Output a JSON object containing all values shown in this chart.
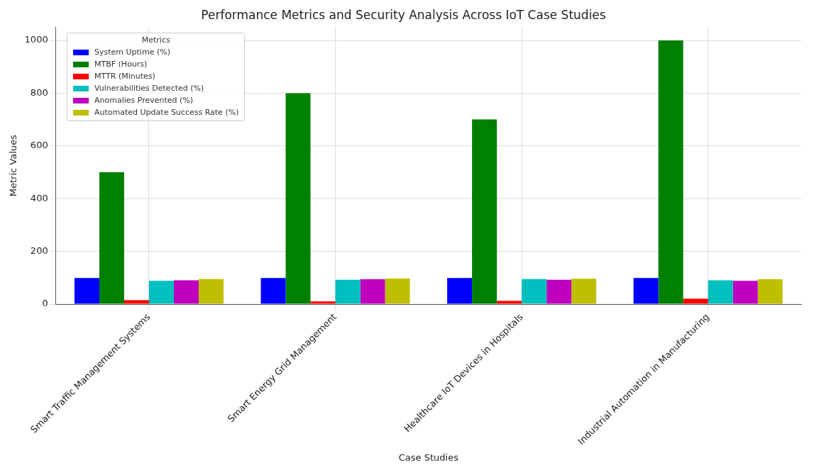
{
  "chart_data": {
    "type": "bar",
    "title": "Performance Metrics and Security Analysis Across IoT Case Studies",
    "xlabel": "Case Studies",
    "ylabel": "Metric Values",
    "legend_title": "Metrics",
    "categories": [
      "Smart Traffic Management Systems",
      "Smart Energy Grid Management",
      "Healthcare IoT Devices in Hospitals",
      "Industrial Automation in Manufacturing"
    ],
    "series": [
      {
        "name": "System Uptime (%)",
        "color": "#0000ff",
        "values": [
          99,
          99,
          99,
          99
        ]
      },
      {
        "name": "MTBF (Hours)",
        "color": "#008000",
        "values": [
          500,
          800,
          700,
          1000
        ]
      },
      {
        "name": "MTTR (Minutes)",
        "color": "#ff0000",
        "values": [
          15,
          10,
          12,
          20
        ]
      },
      {
        "name": "Vulnerabilities Detected (%)",
        "color": "#00bfbf",
        "values": [
          88,
          92,
          95,
          90
        ]
      },
      {
        "name": "Anomalies Prevented (%)",
        "color": "#bf00bf",
        "values": [
          90,
          94,
          92,
          88
        ]
      },
      {
        "name": "Automated Update Success Rate (%)",
        "color": "#bfbf00",
        "values": [
          95,
          97,
          96,
          94
        ]
      }
    ],
    "ylim": [
      0,
      1050
    ],
    "yticks": [
      0,
      200,
      400,
      600,
      800,
      1000
    ],
    "grid": true,
    "legend": "top left"
  }
}
